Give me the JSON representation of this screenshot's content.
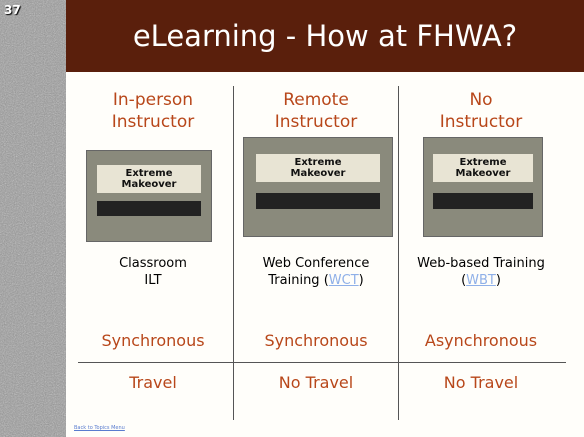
{
  "slide_number": "37",
  "title": "eLearning - How at FHWA?",
  "columns": [
    {
      "header": [
        "In-person",
        "Instructor"
      ],
      "image_text": [
        "Extreme",
        "Makeover"
      ],
      "caption": {
        "lines": [
          "Classroom",
          "ILT"
        ]
      },
      "timing": "Synchronous",
      "travel": "Travel"
    },
    {
      "header": [
        "Remote",
        "Instructor"
      ],
      "image_text": [
        "Extreme",
        "Makeover"
      ],
      "caption": {
        "lines": [
          "Web Conference"
        ],
        "before": "Training (",
        "link": "WCT",
        "after": ")"
      },
      "timing": "Synchronous",
      "travel": "No Travel"
    },
    {
      "header": [
        "No",
        "Instructor"
      ],
      "image_text": [
        "Extreme",
        "Makeover"
      ],
      "caption": {
        "lines": [
          "Web-based Training"
        ],
        "before": "(",
        "link": "WBT",
        "after": ")"
      },
      "timing": "Asynchronous",
      "travel": "No Travel"
    }
  ],
  "footer_link": "Back to Topics Menu"
}
